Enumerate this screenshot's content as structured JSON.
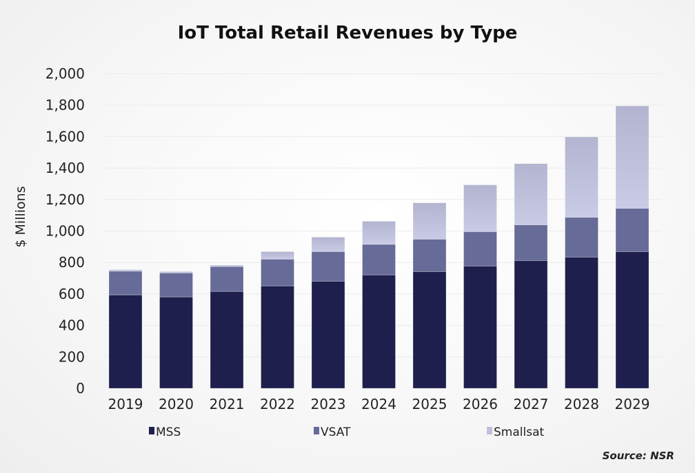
{
  "chart_data": {
    "type": "bar",
    "stacked": true,
    "title": "IoT Total Retail Revenues by Type",
    "xlabel": "",
    "ylabel": "$ Millions",
    "ylim": [
      0,
      2000
    ],
    "yticks": [
      0,
      200,
      400,
      600,
      800,
      1000,
      1200,
      1400,
      1600,
      1800,
      2000
    ],
    "ytick_labels": [
      "0",
      "200",
      "400",
      "600",
      "800",
      "1,000",
      "1,200",
      "1,400",
      "1,600",
      "1,800",
      "2,000"
    ],
    "grid": true,
    "legend_position": "bottom",
    "categories": [
      "2019",
      "2020",
      "2021",
      "2022",
      "2023",
      "2024",
      "2025",
      "2026",
      "2027",
      "2028",
      "2029"
    ],
    "series": [
      {
        "name": "MSS",
        "color": "#1e1f4d",
        "values": [
          594,
          581,
          616,
          651,
          681,
          721,
          742,
          777,
          812,
          834,
          869
        ]
      },
      {
        "name": "VSAT",
        "color": "#676b98",
        "values": [
          151,
          152,
          158,
          170,
          188,
          194,
          206,
          219,
          227,
          253,
          275
        ]
      },
      {
        "name": "Smallsat",
        "color": "#bfc0db",
        "values": [
          9,
          9,
          9,
          48,
          92,
          147,
          231,
          297,
          389,
          511,
          651
        ]
      }
    ],
    "source": "Source: NSR"
  }
}
